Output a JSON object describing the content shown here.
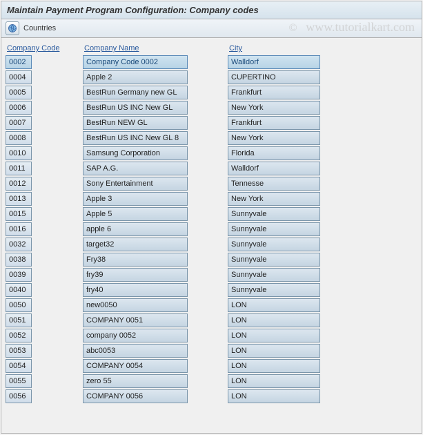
{
  "title": "Maintain Payment Program Configuration: Company codes",
  "toolbar": {
    "countries_label": "Countries"
  },
  "watermark": {
    "copyright": "©",
    "text": "www.tutorialkart.com"
  },
  "headers": {
    "code": "Company Code",
    "name": "Company Name",
    "city": "City"
  },
  "colors": {
    "title_bg_top": "#e8f0f5",
    "title_bg_bottom": "#d5e2ec",
    "cell_bg_top": "#dce6ef",
    "cell_bg_bottom": "#c5d5e2",
    "cell_border": "#7a95aa",
    "header_link": "#2a5a9e",
    "highlight_border": "#5a8ab8"
  },
  "rows": [
    {
      "code": "0002",
      "name": "Company Code 0002",
      "city": "Walldorf",
      "highlight": true
    },
    {
      "code": "0004",
      "name": "Apple 2",
      "city": "CUPERTINO"
    },
    {
      "code": "0005",
      "name": "BestRun Germany new GL",
      "city": "Frankfurt"
    },
    {
      "code": "0006",
      "name": "BestRun US INC New GL",
      "city": "New York"
    },
    {
      "code": "0007",
      "name": "BestRun NEW GL",
      "city": "Frankfurt"
    },
    {
      "code": "0008",
      "name": "BestRun US INC New GL 8",
      "city": "New York"
    },
    {
      "code": "0010",
      "name": "Samsung Corporation",
      "city": "Florida"
    },
    {
      "code": "0011",
      "name": "SAP A.G.",
      "city": "Walldorf"
    },
    {
      "code": "0012",
      "name": "Sony Entertainment",
      "city": "Tennesse"
    },
    {
      "code": "0013",
      "name": "Apple 3",
      "city": "New York"
    },
    {
      "code": "0015",
      "name": "Apple 5",
      "city": "Sunnyvale"
    },
    {
      "code": "0016",
      "name": "apple 6",
      "city": "Sunnyvale"
    },
    {
      "code": "0032",
      "name": "target32",
      "city": "Sunnyvale"
    },
    {
      "code": "0038",
      "name": "Fry38",
      "city": "Sunnyvale"
    },
    {
      "code": "0039",
      "name": "fry39",
      "city": "Sunnyvale"
    },
    {
      "code": "0040",
      "name": "fry40",
      "city": "Sunnyvale"
    },
    {
      "code": "0050",
      "name": "new0050",
      "city": "LON"
    },
    {
      "code": "0051",
      "name": "COMPANY 0051",
      "city": "LON"
    },
    {
      "code": "0052",
      "name": "company 0052",
      "city": "LON"
    },
    {
      "code": "0053",
      "name": "abc0053",
      "city": "LON"
    },
    {
      "code": "0054",
      "name": "COMPANY 0054",
      "city": "LON"
    },
    {
      "code": "0055",
      "name": "zero 55",
      "city": "LON"
    },
    {
      "code": "0056",
      "name": "COMPANY 0056",
      "city": "LON"
    }
  ]
}
